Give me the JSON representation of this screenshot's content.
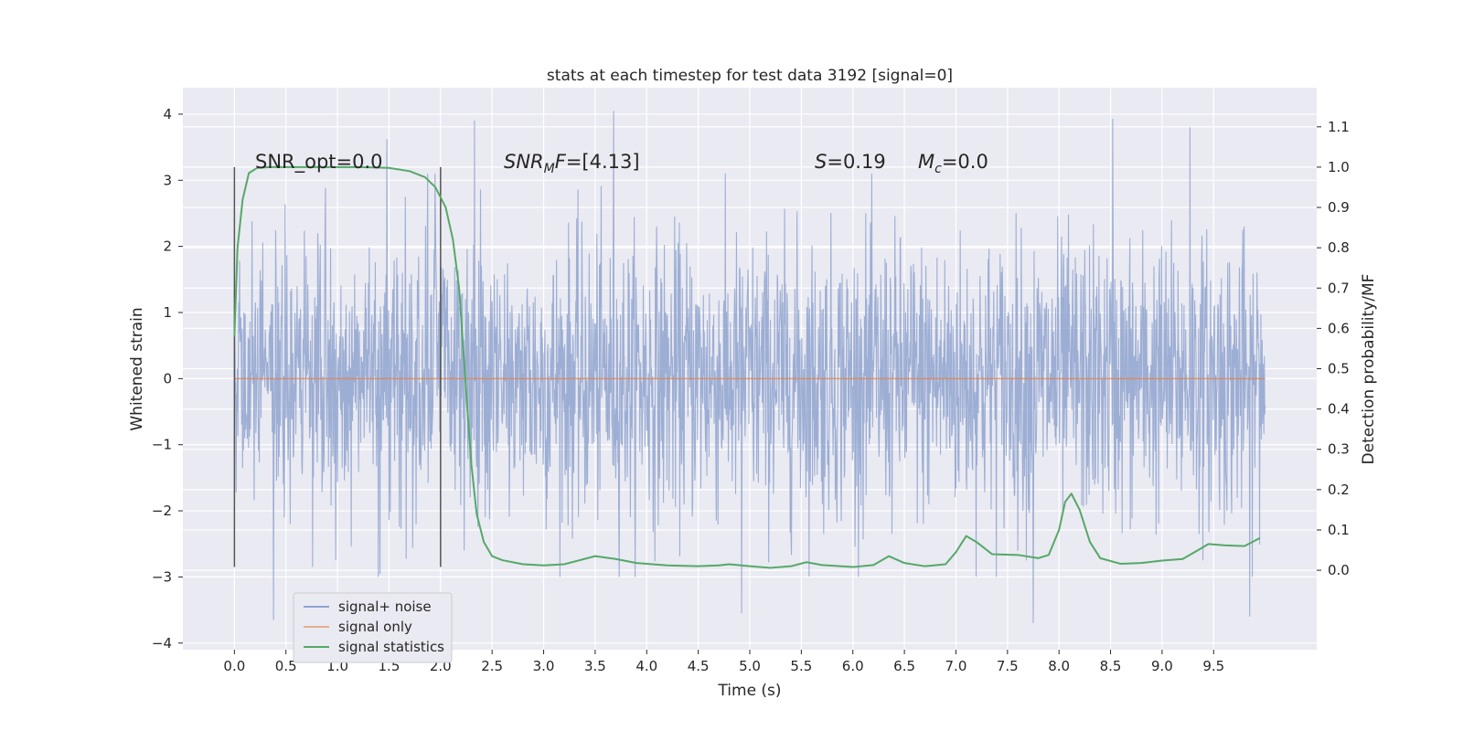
{
  "chart_data": {
    "type": "line",
    "title": "stats at each timestep for test data 3192 [signal=0]",
    "xlabel": "Time (s)",
    "ylabel": "Whitened strain",
    "y2label": "Detection probability/MF",
    "xlim": [
      -0.5,
      10.5
    ],
    "ylim": [
      -4.1,
      4.4
    ],
    "y2lim": [
      -0.197,
      1.197
    ],
    "x_ticks": [
      0.0,
      0.5,
      1.0,
      1.5,
      2.0,
      2.5,
      3.0,
      3.5,
      4.0,
      4.5,
      5.0,
      5.5,
      6.0,
      6.5,
      7.0,
      7.5,
      8.0,
      8.5,
      9.0,
      9.5
    ],
    "x_tick_labels": [
      "0.0",
      "0.5",
      "1.0",
      "1.5",
      "2.0",
      "2.5",
      "3.0",
      "3.5",
      "4.0",
      "4.5",
      "5.0",
      "5.5",
      "6.0",
      "6.5",
      "7.0",
      "7.5",
      "8.0",
      "8.5",
      "9.0",
      "9.5"
    ],
    "y_ticks": [
      4,
      3,
      2,
      1,
      0,
      -1,
      -2,
      -3,
      -4
    ],
    "y_tick_labels": [
      "4",
      "3",
      "2",
      "1",
      "0",
      "−1",
      "−2",
      "−3",
      "−4"
    ],
    "y2_ticks": [
      1.1,
      1.0,
      0.9,
      0.8,
      0.7,
      0.6,
      0.5,
      0.4,
      0.3,
      0.2,
      0.1,
      0.0
    ],
    "y2_tick_labels": [
      "1.1",
      "1.0",
      "0.9",
      "0.8",
      "0.7",
      "0.6",
      "0.5",
      "0.4",
      "0.3",
      "0.2",
      "0.1",
      "0.0"
    ],
    "grid": true,
    "legend_position": "lower-left",
    "annotations": {
      "snr_opt": "SNR_opt=0.0",
      "snr_mf_prefix": "SNR",
      "snr_mf_sub": "M",
      "snr_mf_suffix": "F",
      "snr_mf_value": "=[4.13]",
      "s_symbol": "S",
      "s_value": "=0.19",
      "mc_symbol": "M",
      "mc_sub": "c",
      "mc_value": "=0.0"
    },
    "vertical_markers": [
      0.0,
      2.0
    ],
    "vertical_marker_range": [
      -2.85,
      3.2
    ],
    "series": [
      {
        "name": "signal+ noise",
        "axis": "left",
        "color": "#8fa3cf",
        "style": "dense noise",
        "x_range": [
          0.0,
          10.0
        ],
        "envelope_typical": [
          -1.5,
          1.4
        ],
        "notable_peaks": [
          {
            "x": 2.33,
            "y": 3.9
          },
          {
            "x": 3.68,
            "y": 4.05
          },
          {
            "x": 8.52,
            "y": 3.93
          },
          {
            "x": 9.27,
            "y": 3.8
          },
          {
            "x": 1.48,
            "y": 3.62
          },
          {
            "x": 0.38,
            "y": -3.65
          },
          {
            "x": 4.92,
            "y": -3.55
          },
          {
            "x": 7.75,
            "y": -3.7
          },
          {
            "x": 9.85,
            "y": -3.6
          }
        ]
      },
      {
        "name": "signal only",
        "axis": "left",
        "color": "#dd8452",
        "x": [
          0.0,
          10.0
        ],
        "values": [
          0.0,
          0.0
        ]
      },
      {
        "name": "signal statistics",
        "axis": "right",
        "color": "#55a868",
        "x": [
          0.0,
          0.03,
          0.08,
          0.14,
          0.22,
          0.35,
          0.5,
          0.8,
          1.2,
          1.5,
          1.7,
          1.85,
          1.95,
          2.05,
          2.12,
          2.18,
          2.22,
          2.26,
          2.3,
          2.35,
          2.42,
          2.5,
          2.6,
          2.8,
          3.0,
          3.2,
          3.35,
          3.5,
          3.7,
          3.9,
          4.2,
          4.5,
          4.7,
          4.8,
          5.0,
          5.2,
          5.4,
          5.55,
          5.7,
          6.0,
          6.2,
          6.35,
          6.5,
          6.7,
          6.9,
          7.0,
          7.1,
          7.2,
          7.35,
          7.6,
          7.8,
          7.9,
          8.0,
          8.06,
          8.12,
          8.2,
          8.3,
          8.4,
          8.6,
          8.8,
          9.0,
          9.2,
          9.35,
          9.45,
          9.6,
          9.8,
          9.95
        ],
        "values": [
          0.58,
          0.8,
          0.92,
          0.985,
          0.998,
          1.0,
          1.0,
          1.0,
          1.0,
          0.998,
          0.99,
          0.975,
          0.95,
          0.9,
          0.82,
          0.7,
          0.55,
          0.4,
          0.26,
          0.14,
          0.07,
          0.035,
          0.025,
          0.015,
          0.012,
          0.015,
          0.025,
          0.035,
          0.028,
          0.018,
          0.012,
          0.01,
          0.012,
          0.015,
          0.01,
          0.006,
          0.01,
          0.02,
          0.013,
          0.008,
          0.013,
          0.035,
          0.018,
          0.01,
          0.015,
          0.045,
          0.085,
          0.07,
          0.04,
          0.038,
          0.03,
          0.038,
          0.1,
          0.17,
          0.19,
          0.15,
          0.07,
          0.03,
          0.016,
          0.018,
          0.024,
          0.028,
          0.05,
          0.065,
          0.062,
          0.06,
          0.08
        ]
      }
    ]
  }
}
